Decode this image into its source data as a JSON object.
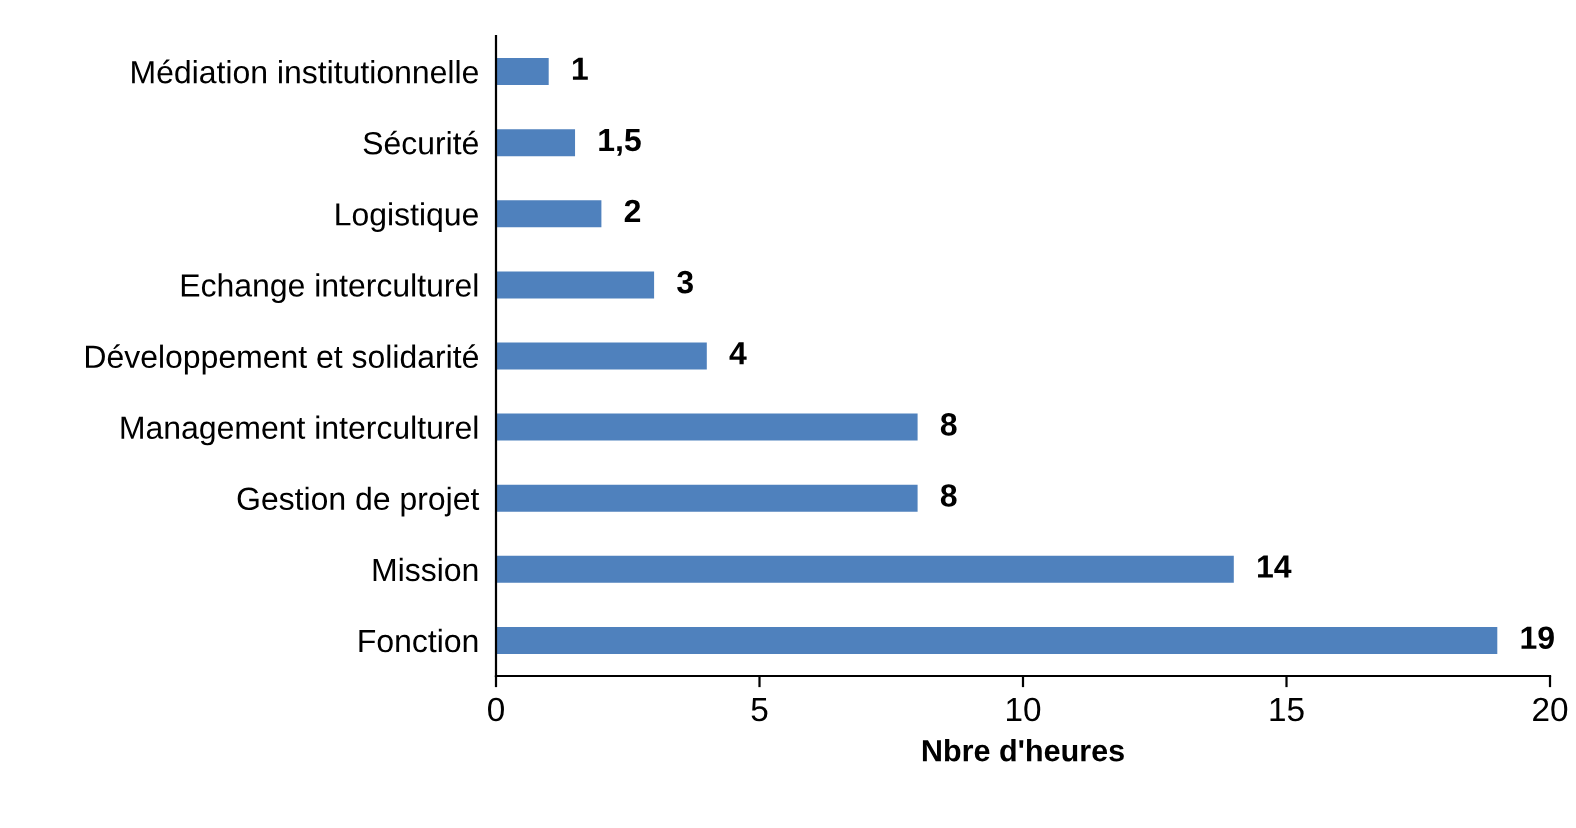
{
  "chart_data": {
    "type": "bar",
    "orientation": "horizontal",
    "xlabel": "Nbre d'heures",
    "categories": [
      "Médiation institutionnelle",
      "Sécurité",
      "Logistique",
      "Echange interculturel",
      "Développement et solidarité",
      "Management interculturel",
      "Gestion de projet",
      "Mission",
      "Fonction"
    ],
    "values": [
      1,
      1.5,
      2,
      3,
      4,
      8,
      8,
      14,
      19
    ],
    "value_labels": [
      "1",
      "1,5",
      "2",
      "3",
      "4",
      "8",
      "8",
      "14",
      "19"
    ],
    "color": "#4f81bd",
    "xlim": [
      0,
      20
    ],
    "xticks": [
      0,
      5,
      10,
      15,
      20
    ],
    "grid": false,
    "legend": false
  }
}
